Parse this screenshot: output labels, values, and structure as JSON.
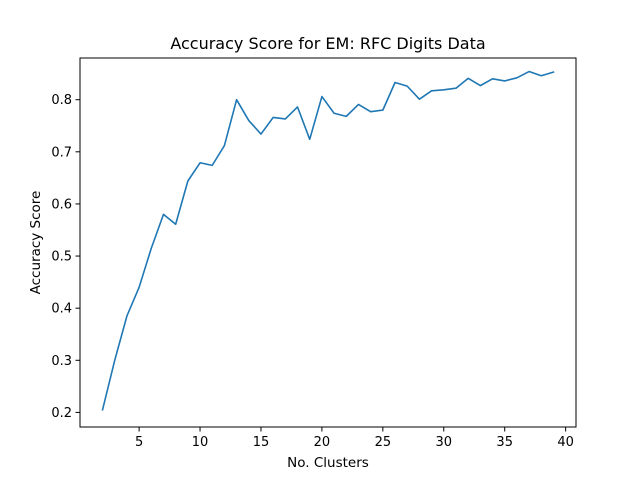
{
  "chart_data": {
    "type": "line",
    "title": "Accuracy Score for EM: RFC Digits Data",
    "xlabel": "No. Clusters",
    "ylabel": "Accuracy Score",
    "xlim": [
      0.15,
      40.85
    ],
    "ylim": [
      0.172,
      0.88
    ],
    "xticks": [
      5,
      10,
      15,
      20,
      25,
      30,
      35,
      40
    ],
    "yticks": [
      0.2,
      0.3,
      0.4,
      0.5,
      0.6,
      0.7,
      0.8
    ],
    "grid": false,
    "line_color": "#1f77b4",
    "series": [
      {
        "x": [
          2,
          3,
          4,
          5,
          6,
          7,
          8,
          9,
          10,
          11,
          12,
          13,
          14,
          15,
          16,
          17,
          18,
          19,
          20,
          21,
          22,
          23,
          24,
          25,
          26,
          27,
          28,
          29,
          30,
          31,
          32,
          33,
          34,
          35,
          36,
          37,
          38,
          39
        ],
        "values": [
          0.205,
          0.3,
          0.385,
          0.44,
          0.515,
          0.58,
          0.561,
          0.644,
          0.679,
          0.674,
          0.712,
          0.8,
          0.76,
          0.734,
          0.766,
          0.763,
          0.786,
          0.724,
          0.806,
          0.774,
          0.768,
          0.791,
          0.777,
          0.78,
          0.833,
          0.826,
          0.801,
          0.817,
          0.819,
          0.822,
          0.841,
          0.827,
          0.84,
          0.836,
          0.842,
          0.854,
          0.846,
          0.853
        ]
      }
    ]
  }
}
